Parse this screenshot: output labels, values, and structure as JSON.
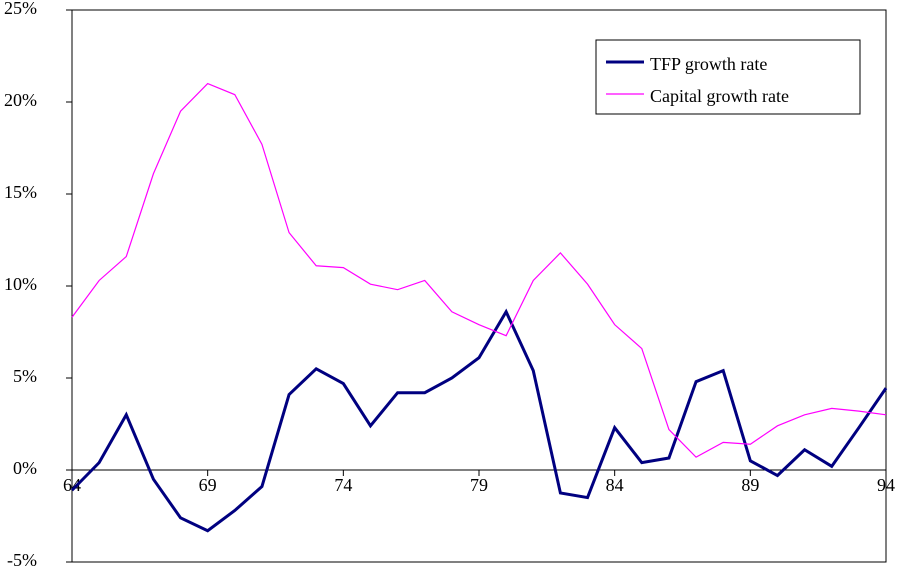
{
  "chart_data": {
    "type": "line",
    "x": [
      64,
      65,
      66,
      67,
      68,
      69,
      70,
      71,
      72,
      73,
      74,
      75,
      76,
      77,
      78,
      79,
      80,
      81,
      82,
      83,
      84,
      85,
      86,
      87,
      88,
      89,
      90,
      91,
      92,
      93,
      94
    ],
    "series": [
      {
        "name": "TFP growth rate",
        "color": "#000080",
        "width": 3,
        "values": [
          -1.1,
          0.4,
          3.0,
          -0.5,
          -2.6,
          -3.3,
          -2.2,
          -0.9,
          4.1,
          5.5,
          4.7,
          2.4,
          4.2,
          4.2,
          5.0,
          6.1,
          8.6,
          5.4,
          -1.25,
          -1.5,
          2.3,
          0.4,
          0.65,
          4.8,
          5.4,
          0.5,
          -0.3,
          1.1,
          0.2,
          2.3,
          4.45
        ]
      },
      {
        "name": "Capital growth rate",
        "color": "#ff00ff",
        "width": 1.2,
        "values": [
          8.3,
          10.3,
          11.6,
          16.1,
          19.5,
          21.0,
          20.4,
          17.7,
          12.9,
          11.1,
          11.0,
          10.1,
          9.8,
          10.3,
          8.6,
          7.9,
          7.3,
          10.3,
          11.8,
          10.1,
          7.9,
          6.6,
          2.2,
          0.7,
          1.5,
          1.4,
          2.4,
          3.0,
          3.35,
          3.2,
          3.0
        ]
      }
    ],
    "xlim": [
      64,
      94
    ],
    "xticks": [
      64,
      69,
      74,
      79,
      84,
      89,
      94
    ],
    "ylim": [
      -5,
      25
    ],
    "yticks": [
      {
        "value": -5,
        "label": "-5%"
      },
      {
        "value": 0,
        "label": "0%"
      },
      {
        "value": 5,
        "label": "5%"
      },
      {
        "value": 10,
        "label": "10%"
      },
      {
        "value": 15,
        "label": "15%"
      },
      {
        "value": 20,
        "label": "20%"
      },
      {
        "value": 25,
        "label": "25%"
      }
    ],
    "grid": false,
    "legend": "upper right"
  }
}
